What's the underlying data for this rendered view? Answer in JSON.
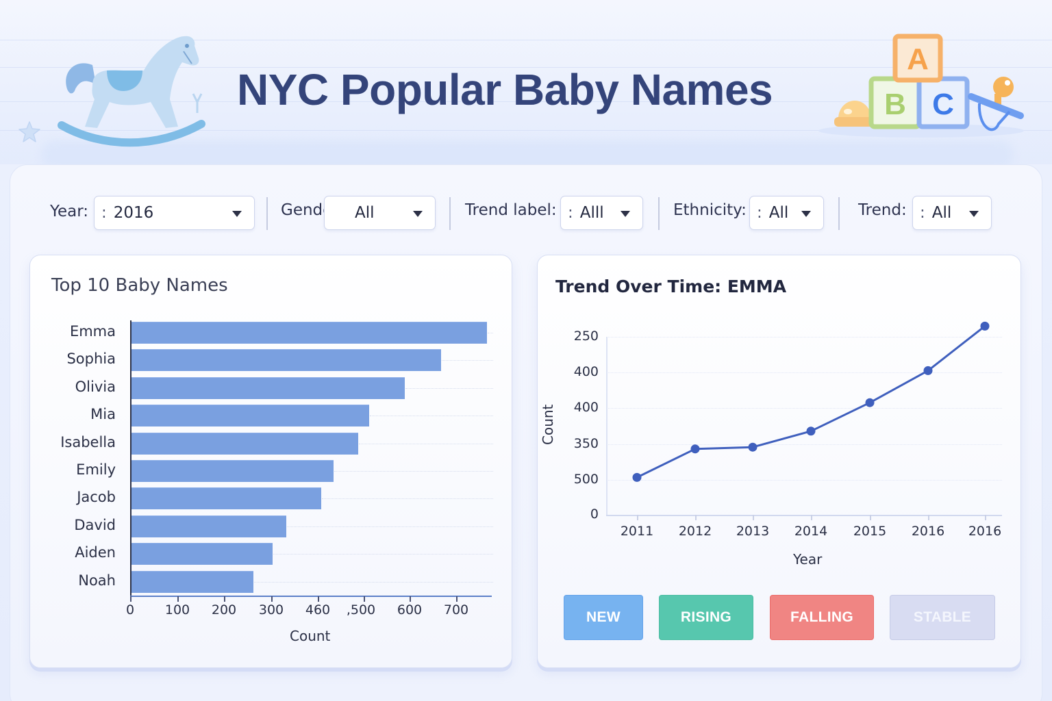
{
  "header": {
    "title": "NYC Popular Baby Names",
    "decorations": [
      "rocking-horse-icon",
      "star-icon",
      "abc-blocks-icon",
      "rattle-icon",
      "pacifier-icon"
    ],
    "blocks": [
      "A",
      "B",
      "C"
    ]
  },
  "filters": {
    "year": {
      "label": "Year:",
      "value": "2016"
    },
    "gender": {
      "label": "Gender:",
      "value": "All"
    },
    "trend_label": {
      "label": "Trend label:",
      "value": "Alll"
    },
    "ethnicity": {
      "label": "Ethnicity:",
      "value": "All"
    },
    "trend": {
      "label": "Trend:",
      "value": "All"
    }
  },
  "top_names_panel": {
    "title": "Top 10 Baby Names",
    "xlabel": "Count",
    "x_ticks": [
      "0",
      "100",
      "200",
      "300",
      "460",
      ",500",
      "600",
      "700"
    ]
  },
  "trend_panel": {
    "title": "Trend Over Time: EMMA",
    "ylabel": "Count",
    "xlabel": "Year",
    "y_ticks": [
      "250",
      "400",
      "400",
      "350",
      "500",
      "0"
    ],
    "x_ticks": [
      "2011",
      "2012",
      "2013",
      "2014",
      "2015",
      "2016",
      "2016"
    ]
  },
  "trend_buttons": [
    {
      "label": "NEW",
      "color": "#77b3f0"
    },
    {
      "label": "RISING",
      "color": "#57c7ae"
    },
    {
      "label": "FALLING",
      "color": "#f08583"
    },
    {
      "label": "STABLE",
      "color": "#d8dcf2"
    }
  ],
  "colors": {
    "title": "#34447a",
    "bar": "#7aa0e0",
    "line": "#3f5fbd",
    "background": "#eef2fd"
  },
  "chart_data": [
    {
      "type": "bar",
      "orientation": "horizontal",
      "title": "Top 10 Baby Names",
      "categories": [
        "Emma",
        "Sophia",
        "Olivia",
        "Mia",
        "Isabella",
        "Emily",
        "Jacob",
        "David",
        "Aiden",
        "Noah"
      ],
      "values": [
        765,
        666,
        588,
        512,
        488,
        435,
        409,
        334,
        304,
        263
      ],
      "xlabel": "Count",
      "ylabel": "",
      "x_tick_labels": [
        "0",
        "100",
        "200",
        "300",
        "460",
        ",500",
        "600",
        "700"
      ],
      "xlim": [
        0,
        775
      ],
      "grid": "dotted horizontal guide lines"
    },
    {
      "type": "line",
      "title": "Trend Over Time: EMMA",
      "x": [
        "2011",
        "2012",
        "2013",
        "2014",
        "2015",
        "2016",
        "2016"
      ],
      "y_position_fraction": [
        0.21,
        0.37,
        0.38,
        0.47,
        0.63,
        0.81,
        1.06
      ],
      "y_tick_labels_top_to_bottom": [
        "250",
        "400",
        "400",
        "350",
        "500",
        "0"
      ],
      "xlabel": "Year",
      "ylabel": "Count",
      "grid": "dotted horizontal",
      "note": "y tick labels are non-monotonic as rendered; values given as fraction of axis height from 0 to top tick (250 label)"
    }
  ]
}
